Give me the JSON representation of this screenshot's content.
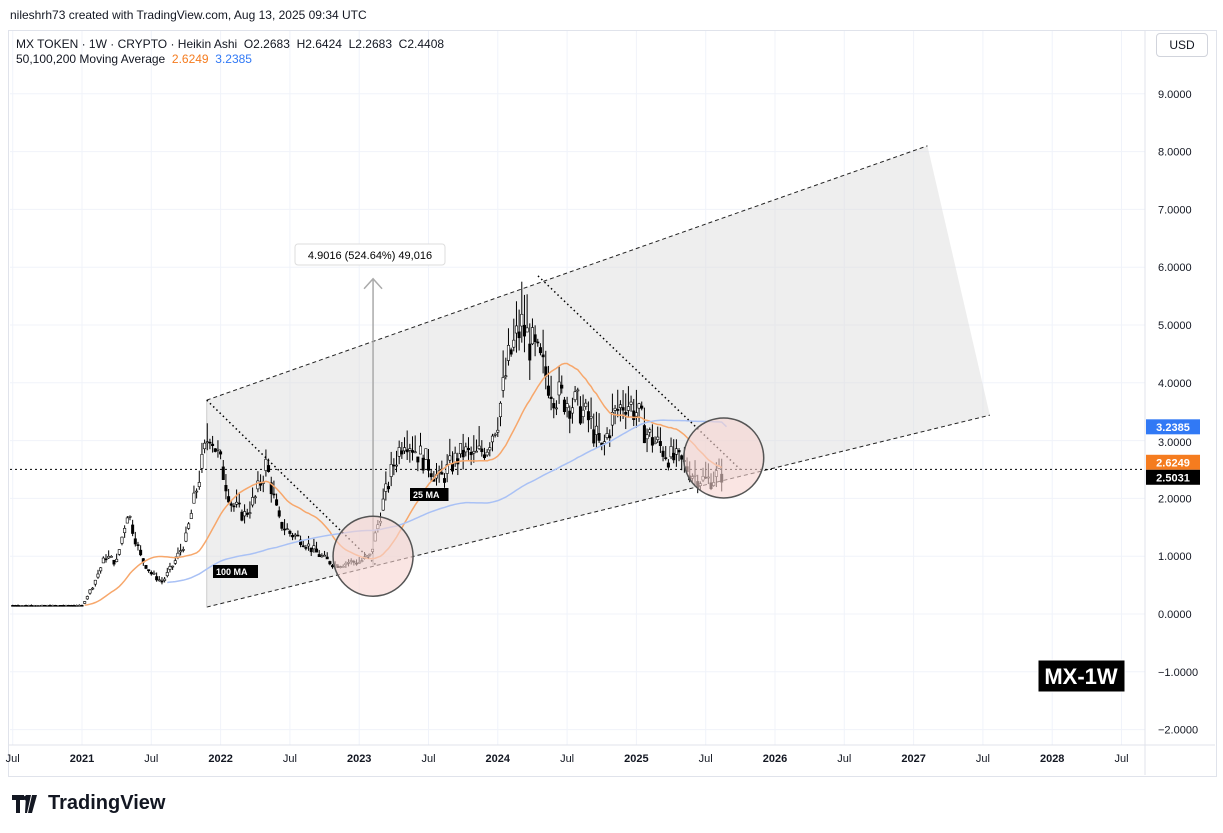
{
  "credit": "nileshrh73 created with TradingView.com, Aug 13, 2025 09:34 UTC",
  "legend": {
    "symbol": "MX TOKEN · 1W · CRYPTO · Heikin Ashi",
    "o": "O2.2683",
    "h": "H2.6424",
    "l": "L2.2683",
    "c": "C2.4408",
    "ma_label": "50,100,200 Moving Average",
    "ma1": "2.6249",
    "ma2": "3.2385"
  },
  "currency": "USD",
  "brand": "TradingView",
  "watermark": "MX-1W",
  "colors": {
    "ma_orange": "#f7a76b",
    "ma_blue": "#a9c1f5",
    "orange_tag": "#f57c1f",
    "blue_tag": "#3179f5",
    "circle_fill": "#f6d3d0"
  },
  "chart_data": {
    "type": "candlestick",
    "yticks": [
      "9.0000",
      "8.0000",
      "7.0000",
      "6.0000",
      "5.0000",
      "4.0000",
      "3.0000",
      "2.0000",
      "1.0000",
      "0.0000",
      "−1.0000",
      "−2.0000"
    ],
    "ylim": [
      -2.3,
      9.9
    ],
    "xticks": [
      [
        "Jul",
        2020.5
      ],
      [
        "2021",
        2021
      ],
      [
        "Jul",
        2021.5
      ],
      [
        "2022",
        2022
      ],
      [
        "Jul",
        2022.5
      ],
      [
        "2023",
        2023
      ],
      [
        "Jul",
        2023.5
      ],
      [
        "2024",
        2024
      ],
      [
        "Jul",
        2024.5
      ],
      [
        "2025",
        2025
      ],
      [
        "Jul",
        2025.5
      ],
      [
        "2026",
        2026
      ],
      [
        "Jul",
        2026.5
      ],
      [
        "2027",
        2027
      ],
      [
        "Jul",
        2027.5
      ],
      [
        "2028",
        2028
      ],
      [
        "Jul",
        2028.5
      ]
    ],
    "close_points": [
      [
        2020.5,
        0.15
      ],
      [
        2021.0,
        0.15
      ],
      [
        2021.08,
        0.5
      ],
      [
        2021.17,
        1.0
      ],
      [
        2021.25,
        0.9
      ],
      [
        2021.33,
        1.8
      ],
      [
        2021.42,
        1.0
      ],
      [
        2021.5,
        0.7
      ],
      [
        2021.58,
        0.55
      ],
      [
        2021.67,
        0.9
      ],
      [
        2021.75,
        1.3
      ],
      [
        2021.83,
        2.2
      ],
      [
        2021.92,
        3.2
      ],
      [
        2022.0,
        2.6
      ],
      [
        2022.08,
        1.9
      ],
      [
        2022.17,
        1.7
      ],
      [
        2022.25,
        2.0
      ],
      [
        2022.33,
        2.6
      ],
      [
        2022.42,
        1.6
      ],
      [
        2022.5,
        1.4
      ],
      [
        2022.58,
        1.3
      ],
      [
        2022.67,
        1.1
      ],
      [
        2022.75,
        0.95
      ],
      [
        2022.83,
        0.85
      ],
      [
        2022.92,
        0.9
      ],
      [
        2023.0,
        0.9
      ],
      [
        2023.08,
        1.0
      ],
      [
        2023.17,
        1.9
      ],
      [
        2023.25,
        2.6
      ],
      [
        2023.33,
        3.1
      ],
      [
        2023.42,
        2.8
      ],
      [
        2023.5,
        2.6
      ],
      [
        2023.58,
        2.3
      ],
      [
        2023.67,
        2.6
      ],
      [
        2023.75,
        2.8
      ],
      [
        2023.83,
        2.7
      ],
      [
        2023.92,
        2.9
      ],
      [
        2024.0,
        3.4
      ],
      [
        2024.08,
        4.4
      ],
      [
        2024.17,
        5.0
      ],
      [
        2024.25,
        4.6
      ],
      [
        2024.33,
        4.2
      ],
      [
        2024.42,
        3.8
      ],
      [
        2024.5,
        3.7
      ],
      [
        2024.58,
        3.6
      ],
      [
        2024.67,
        3.3
      ],
      [
        2024.75,
        2.8
      ],
      [
        2024.83,
        3.4
      ],
      [
        2024.92,
        3.7
      ],
      [
        2025.0,
        3.5
      ],
      [
        2025.08,
        3.1
      ],
      [
        2025.17,
        2.9
      ],
      [
        2025.25,
        2.7
      ],
      [
        2025.33,
        2.6
      ],
      [
        2025.42,
        2.4
      ],
      [
        2025.5,
        2.3
      ],
      [
        2025.62,
        2.44
      ]
    ],
    "series": [
      {
        "name": "25 MA",
        "color": "#f7a76b"
      },
      {
        "name": "100 MA",
        "color": "#a9c1f5"
      }
    ],
    "channel": {
      "lower": [
        [
          2021.9,
          0.12
        ],
        [
          2027.55,
          3.44
        ]
      ],
      "upper": [
        [
          2021.9,
          3.7
        ],
        [
          2027.1,
          8.1
        ]
      ]
    },
    "trendlines": [
      [
        [
          2021.9,
          3.7
        ],
        [
          2023.12,
          0.85
        ]
      ],
      [
        [
          2024.29,
          5.85
        ],
        [
          2025.75,
          2.5
        ]
      ]
    ],
    "highlights": [
      [
        2023.1,
        1.0
      ],
      [
        2025.63,
        2.7
      ]
    ],
    "measure": {
      "from": [
        2023.1,
        0.85
      ],
      "to": [
        2023.1,
        5.8
      ],
      "label": "4.9016 (524.64%) 49,016"
    },
    "annotations": [
      "25 MA",
      "100 MA"
    ],
    "price_tags": [
      {
        "value": 3.2385,
        "label": "3.2385",
        "color": "#3179f5"
      },
      {
        "value": 2.6249,
        "label": "2.6249",
        "color": "#f57c1f"
      },
      {
        "value": 2.5031,
        "label": "2.5031",
        "color": "#000000"
      }
    ],
    "current_price": 2.5031
  }
}
